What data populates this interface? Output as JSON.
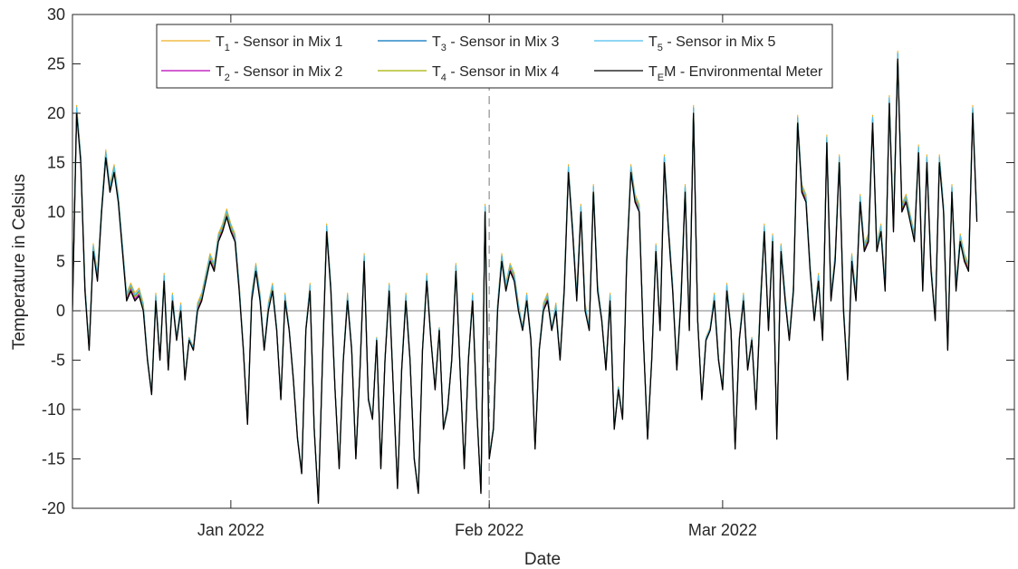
{
  "chart_data": {
    "type": "line",
    "xlabel": "Date",
    "ylabel": "Temperature in Celsius",
    "ylim": [
      -20,
      30
    ],
    "xlim": [
      "2021-12-13",
      "2022-04-05"
    ],
    "yticks": [
      -20,
      -15,
      -10,
      -5,
      0,
      5,
      10,
      15,
      20,
      25,
      30
    ],
    "xticks": [
      {
        "date": "2022-01-01",
        "label": "Jan 2022"
      },
      {
        "date": "2022-02-01",
        "label": "Feb 2022"
      },
      {
        "date": "2022-03-01",
        "label": "Mar 2022"
      }
    ],
    "reference_lines": [
      {
        "orientation": "horizontal",
        "y": 0,
        "style": "solid",
        "color": "#7f7f7f"
      },
      {
        "orientation": "vertical",
        "x": "2022-02-01",
        "style": "dashed",
        "color": "#a6a6a6"
      }
    ],
    "legend": {
      "location": "top",
      "columns": 3
    },
    "series": [
      {
        "name": "T1 - Sensor in Mix 1",
        "legend_main": "T",
        "legend_sub": "1",
        "legend_rest": " - Sensor in Mix 1",
        "color": "#EDB120",
        "offset": 0.8
      },
      {
        "name": "T2 - Sensor in Mix 2",
        "legend_main": "T",
        "legend_sub": "2",
        "legend_rest": " - Sensor in Mix 2",
        "color": "#B800B8",
        "offset": 0.2
      },
      {
        "name": "T3 - Sensor in Mix 3",
        "legend_main": "T",
        "legend_sub": "3",
        "legend_rest": " - Sensor in Mix 3",
        "color": "#0072BD",
        "offset": 0.5
      },
      {
        "name": "T4 - Sensor in Mix 4",
        "legend_main": "T",
        "legend_sub": "4",
        "legend_rest": " - Sensor in Mix 4",
        "color": "#A6B000",
        "offset": 0.4
      },
      {
        "name": "T5 - Sensor in Mix 5",
        "legend_main": "T",
        "legend_sub": "5",
        "legend_rest": " - Sensor in Mix 5",
        "color": "#4DBEEE",
        "offset": 0.6
      },
      {
        "name": "TEM - Environmental Meter",
        "legend_main": "T",
        "legend_sub": "E",
        "legend_rest": "M - Environmental Meter",
        "color": "#000000",
        "offset": 0
      }
    ],
    "base": [
      {
        "x": "2021-12-13",
        "y": 0
      },
      {
        "x": "2021-12-13T12:00",
        "y": 20
      },
      {
        "x": "2021-12-14",
        "y": 15
      },
      {
        "x": "2021-12-14T12:00",
        "y": 2
      },
      {
        "x": "2021-12-15",
        "y": -4
      },
      {
        "x": "2021-12-15T12:00",
        "y": 6
      },
      {
        "x": "2021-12-16",
        "y": 3
      },
      {
        "x": "2021-12-16T12:00",
        "y": 10
      },
      {
        "x": "2021-12-17",
        "y": 15.5
      },
      {
        "x": "2021-12-17T12:00",
        "y": 12
      },
      {
        "x": "2021-12-18",
        "y": 14
      },
      {
        "x": "2021-12-18T12:00",
        "y": 11
      },
      {
        "x": "2021-12-19",
        "y": 6
      },
      {
        "x": "2021-12-19T12:00",
        "y": 1
      },
      {
        "x": "2021-12-20",
        "y": 2
      },
      {
        "x": "2021-12-20T12:00",
        "y": 1
      },
      {
        "x": "2021-12-21",
        "y": 1.5
      },
      {
        "x": "2021-12-21T12:00",
        "y": 0
      },
      {
        "x": "2021-12-22",
        "y": -5
      },
      {
        "x": "2021-12-22T12:00",
        "y": -8.5
      },
      {
        "x": "2021-12-23",
        "y": 1
      },
      {
        "x": "2021-12-23T12:00",
        "y": -5
      },
      {
        "x": "2021-12-24",
        "y": 3
      },
      {
        "x": "2021-12-24T12:00",
        "y": -6
      },
      {
        "x": "2021-12-25",
        "y": 1
      },
      {
        "x": "2021-12-25T12:00",
        "y": -3
      },
      {
        "x": "2021-12-26",
        "y": 0
      },
      {
        "x": "2021-12-26T12:00",
        "y": -7
      },
      {
        "x": "2021-12-27",
        "y": -3
      },
      {
        "x": "2021-12-27T12:00",
        "y": -4
      },
      {
        "x": "2021-12-28",
        "y": 0
      },
      {
        "x": "2021-12-28T12:00",
        "y": 1
      },
      {
        "x": "2021-12-29",
        "y": 3
      },
      {
        "x": "2021-12-29T12:00",
        "y": 5
      },
      {
        "x": "2021-12-30",
        "y": 4
      },
      {
        "x": "2021-12-30T12:00",
        "y": 7
      },
      {
        "x": "2021-12-31",
        "y": 8
      },
      {
        "x": "2021-12-31T12:00",
        "y": 9.5
      },
      {
        "x": "2022-01-01",
        "y": 8
      },
      {
        "x": "2022-01-01T12:00",
        "y": 7
      },
      {
        "x": "2022-01-02",
        "y": 2
      },
      {
        "x": "2022-01-02T12:00",
        "y": -4
      },
      {
        "x": "2022-01-03",
        "y": -11.5
      },
      {
        "x": "2022-01-03T12:00",
        "y": 1
      },
      {
        "x": "2022-01-04",
        "y": 4
      },
      {
        "x": "2022-01-04T12:00",
        "y": 1
      },
      {
        "x": "2022-01-05",
        "y": -4
      },
      {
        "x": "2022-01-05T12:00",
        "y": 0
      },
      {
        "x": "2022-01-06",
        "y": 2
      },
      {
        "x": "2022-01-06T12:00",
        "y": -2
      },
      {
        "x": "2022-01-07",
        "y": -9
      },
      {
        "x": "2022-01-07T12:00",
        "y": 1
      },
      {
        "x": "2022-01-08",
        "y": -2
      },
      {
        "x": "2022-01-08T12:00",
        "y": -7
      },
      {
        "x": "2022-01-09",
        "y": -13
      },
      {
        "x": "2022-01-09T12:00",
        "y": -16.5
      },
      {
        "x": "2022-01-10",
        "y": -2
      },
      {
        "x": "2022-01-10T12:00",
        "y": 2
      },
      {
        "x": "2022-01-11",
        "y": -12
      },
      {
        "x": "2022-01-11T12:00",
        "y": -19.5
      },
      {
        "x": "2022-01-12",
        "y": -5
      },
      {
        "x": "2022-01-12T12:00",
        "y": 8
      },
      {
        "x": "2022-01-13",
        "y": 2
      },
      {
        "x": "2022-01-13T12:00",
        "y": -8
      },
      {
        "x": "2022-01-14",
        "y": -16
      },
      {
        "x": "2022-01-14T12:00",
        "y": -5
      },
      {
        "x": "2022-01-15",
        "y": 1
      },
      {
        "x": "2022-01-15T12:00",
        "y": -4
      },
      {
        "x": "2022-01-16",
        "y": -15
      },
      {
        "x": "2022-01-16T12:00",
        "y": -6
      },
      {
        "x": "2022-01-17",
        "y": 5
      },
      {
        "x": "2022-01-17T12:00",
        "y": -9
      },
      {
        "x": "2022-01-18",
        "y": -11
      },
      {
        "x": "2022-01-18T12:00",
        "y": -3
      },
      {
        "x": "2022-01-19",
        "y": -16
      },
      {
        "x": "2022-01-19T12:00",
        "y": -5
      },
      {
        "x": "2022-01-20",
        "y": 2
      },
      {
        "x": "2022-01-20T12:00",
        "y": -8
      },
      {
        "x": "2022-01-21",
        "y": -18
      },
      {
        "x": "2022-01-21T12:00",
        "y": -6
      },
      {
        "x": "2022-01-22",
        "y": 1
      },
      {
        "x": "2022-01-22T12:00",
        "y": -5
      },
      {
        "x": "2022-01-23",
        "y": -15
      },
      {
        "x": "2022-01-23T12:00",
        "y": -18.5
      },
      {
        "x": "2022-01-24",
        "y": -4
      },
      {
        "x": "2022-01-24T12:00",
        "y": 3
      },
      {
        "x": "2022-01-25",
        "y": -3
      },
      {
        "x": "2022-01-25T12:00",
        "y": -8
      },
      {
        "x": "2022-01-26",
        "y": -2
      },
      {
        "x": "2022-01-26T12:00",
        "y": -12
      },
      {
        "x": "2022-01-27",
        "y": -10
      },
      {
        "x": "2022-01-27T12:00",
        "y": -5
      },
      {
        "x": "2022-01-28",
        "y": 4
      },
      {
        "x": "2022-01-28T12:00",
        "y": -6
      },
      {
        "x": "2022-01-29",
        "y": -16
      },
      {
        "x": "2022-01-29T12:00",
        "y": -5
      },
      {
        "x": "2022-01-30",
        "y": 1
      },
      {
        "x": "2022-01-30T12:00",
        "y": -10
      },
      {
        "x": "2022-01-31",
        "y": -18.5
      },
      {
        "x": "2022-01-31T12:00",
        "y": 10
      },
      {
        "x": "2022-02-01",
        "y": -15
      },
      {
        "x": "2022-02-01T12:00",
        "y": -12
      },
      {
        "x": "2022-02-02",
        "y": 0
      },
      {
        "x": "2022-02-02T12:00",
        "y": 5
      },
      {
        "x": "2022-02-03",
        "y": 2
      },
      {
        "x": "2022-02-03T12:00",
        "y": 4
      },
      {
        "x": "2022-02-04",
        "y": 3
      },
      {
        "x": "2022-02-04T12:00",
        "y": 0
      },
      {
        "x": "2022-02-05",
        "y": -2
      },
      {
        "x": "2022-02-05T12:00",
        "y": 1
      },
      {
        "x": "2022-02-06",
        "y": -3
      },
      {
        "x": "2022-02-06T12:00",
        "y": -14
      },
      {
        "x": "2022-02-07",
        "y": -4
      },
      {
        "x": "2022-02-07T12:00",
        "y": 0
      },
      {
        "x": "2022-02-08",
        "y": 1
      },
      {
        "x": "2022-02-08T12:00",
        "y": -2
      },
      {
        "x": "2022-02-09",
        "y": 0
      },
      {
        "x": "2022-02-09T12:00",
        "y": -5
      },
      {
        "x": "2022-02-10",
        "y": 2
      },
      {
        "x": "2022-02-10T12:00",
        "y": 14
      },
      {
        "x": "2022-02-11",
        "y": 8
      },
      {
        "x": "2022-02-11T12:00",
        "y": 1
      },
      {
        "x": "2022-02-12",
        "y": 10
      },
      {
        "x": "2022-02-12T12:00",
        "y": 0
      },
      {
        "x": "2022-02-13",
        "y": -2
      },
      {
        "x": "2022-02-13T12:00",
        "y": 12
      },
      {
        "x": "2022-02-14",
        "y": 2
      },
      {
        "x": "2022-02-14T12:00",
        "y": -1
      },
      {
        "x": "2022-02-15",
        "y": -6
      },
      {
        "x": "2022-02-15T12:00",
        "y": 1
      },
      {
        "x": "2022-02-16",
        "y": -12
      },
      {
        "x": "2022-02-16T12:00",
        "y": -8
      },
      {
        "x": "2022-02-17",
        "y": -11
      },
      {
        "x": "2022-02-17T12:00",
        "y": 5
      },
      {
        "x": "2022-02-18",
        "y": 14
      },
      {
        "x": "2022-02-18T12:00",
        "y": 11
      },
      {
        "x": "2022-02-19",
        "y": 10
      },
      {
        "x": "2022-02-19T12:00",
        "y": -3
      },
      {
        "x": "2022-02-20",
        "y": -13
      },
      {
        "x": "2022-02-20T12:00",
        "y": -5
      },
      {
        "x": "2022-02-21",
        "y": 6
      },
      {
        "x": "2022-02-21T12:00",
        "y": -2
      },
      {
        "x": "2022-02-22",
        "y": 15
      },
      {
        "x": "2022-02-22T12:00",
        "y": 8
      },
      {
        "x": "2022-02-23",
        "y": 2
      },
      {
        "x": "2022-02-23T12:00",
        "y": -6
      },
      {
        "x": "2022-02-24",
        "y": 1
      },
      {
        "x": "2022-02-24T12:00",
        "y": 12
      },
      {
        "x": "2022-02-25",
        "y": -2
      },
      {
        "x": "2022-02-25T12:00",
        "y": 20
      },
      {
        "x": "2022-02-26",
        "y": -1
      },
      {
        "x": "2022-02-26T12:00",
        "y": -9
      },
      {
        "x": "2022-02-27",
        "y": -3
      },
      {
        "x": "2022-02-27T12:00",
        "y": -2
      },
      {
        "x": "2022-02-28",
        "y": 1
      },
      {
        "x": "2022-02-28T12:00",
        "y": -5
      },
      {
        "x": "2022-03-01",
        "y": -8
      },
      {
        "x": "2022-03-01T12:00",
        "y": 2
      },
      {
        "x": "2022-03-02",
        "y": -2
      },
      {
        "x": "2022-03-02T12:00",
        "y": -14
      },
      {
        "x": "2022-03-03",
        "y": -3
      },
      {
        "x": "2022-03-03T12:00",
        "y": 1
      },
      {
        "x": "2022-03-04",
        "y": -6
      },
      {
        "x": "2022-03-04T12:00",
        "y": -3
      },
      {
        "x": "2022-03-05",
        "y": -10
      },
      {
        "x": "2022-03-05T12:00",
        "y": 0
      },
      {
        "x": "2022-03-06",
        "y": 8
      },
      {
        "x": "2022-03-06T12:00",
        "y": -2
      },
      {
        "x": "2022-03-07",
        "y": 7
      },
      {
        "x": "2022-03-07T12:00",
        "y": -13
      },
      {
        "x": "2022-03-08",
        "y": 6
      },
      {
        "x": "2022-03-08T12:00",
        "y": 1
      },
      {
        "x": "2022-03-09",
        "y": -3
      },
      {
        "x": "2022-03-09T12:00",
        "y": 2
      },
      {
        "x": "2022-03-10",
        "y": 19
      },
      {
        "x": "2022-03-10T12:00",
        "y": 12
      },
      {
        "x": "2022-03-11",
        "y": 11
      },
      {
        "x": "2022-03-11T12:00",
        "y": 4
      },
      {
        "x": "2022-03-12",
        "y": -1
      },
      {
        "x": "2022-03-12T12:00",
        "y": 3
      },
      {
        "x": "2022-03-13",
        "y": -3
      },
      {
        "x": "2022-03-13T12:00",
        "y": 17
      },
      {
        "x": "2022-03-14",
        "y": 1
      },
      {
        "x": "2022-03-14T12:00",
        "y": 5
      },
      {
        "x": "2022-03-15",
        "y": 15
      },
      {
        "x": "2022-03-15T12:00",
        "y": 0
      },
      {
        "x": "2022-03-16",
        "y": -7
      },
      {
        "x": "2022-03-16T12:00",
        "y": 5
      },
      {
        "x": "2022-03-17",
        "y": 1
      },
      {
        "x": "2022-03-17T12:00",
        "y": 11
      },
      {
        "x": "2022-03-18",
        "y": 6
      },
      {
        "x": "2022-03-18T12:00",
        "y": 7
      },
      {
        "x": "2022-03-19",
        "y": 19
      },
      {
        "x": "2022-03-19T12:00",
        "y": 6
      },
      {
        "x": "2022-03-20",
        "y": 8
      },
      {
        "x": "2022-03-20T12:00",
        "y": 2
      },
      {
        "x": "2022-03-21",
        "y": 21
      },
      {
        "x": "2022-03-21T12:00",
        "y": 8
      },
      {
        "x": "2022-03-22",
        "y": 25.5
      },
      {
        "x": "2022-03-22T12:00",
        "y": 10
      },
      {
        "x": "2022-03-23",
        "y": 11
      },
      {
        "x": "2022-03-23T12:00",
        "y": 9
      },
      {
        "x": "2022-03-24",
        "y": 7
      },
      {
        "x": "2022-03-24T12:00",
        "y": 16
      },
      {
        "x": "2022-03-25",
        "y": 2
      },
      {
        "x": "2022-03-25T12:00",
        "y": 15
      },
      {
        "x": "2022-03-26",
        "y": 4
      },
      {
        "x": "2022-03-26T12:00",
        "y": -1
      },
      {
        "x": "2022-03-27",
        "y": 15
      },
      {
        "x": "2022-03-27T12:00",
        "y": 10
      },
      {
        "x": "2022-03-28",
        "y": -4
      },
      {
        "x": "2022-03-28T12:00",
        "y": 12
      },
      {
        "x": "2022-03-29",
        "y": 2
      },
      {
        "x": "2022-03-29T12:00",
        "y": 7
      },
      {
        "x": "2022-03-30",
        "y": 5
      },
      {
        "x": "2022-03-30T12:00",
        "y": 4
      },
      {
        "x": "2022-03-31",
        "y": 20
      },
      {
        "x": "2022-03-31T12:00",
        "y": 9
      }
    ]
  }
}
